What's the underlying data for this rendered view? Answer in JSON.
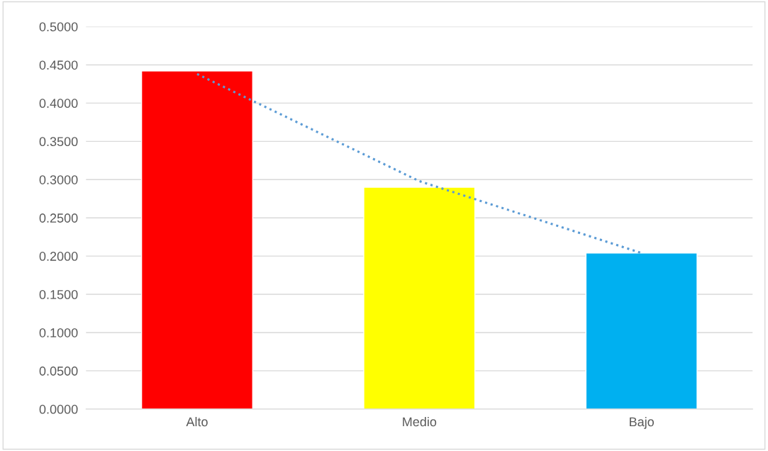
{
  "chart_data": {
    "type": "bar",
    "categories": [
      "Alto",
      "Medio",
      "Bajo"
    ],
    "series": [
      {
        "colors": [
          "#ff0000",
          "#ffff00",
          "#00b0f0"
        ],
        "values": [
          0.442,
          0.29,
          0.204
        ]
      },
      {
        "type": "line",
        "color": "#5b9bd5",
        "line_style": "dotted",
        "values": [
          0.438,
          0.298,
          0.204
        ]
      }
    ],
    "ylim": [
      0,
      0.5
    ],
    "yticks": [
      {
        "value": 0,
        "label": "0.0000"
      },
      {
        "value": 0.05,
        "label": "0.0500"
      },
      {
        "value": 0.1,
        "label": "0.1000"
      },
      {
        "value": 0.15,
        "label": "0.1500"
      },
      {
        "value": 0.2,
        "label": "0.2000"
      },
      {
        "value": 0.25,
        "label": "0.2500"
      },
      {
        "value": 0.3,
        "label": "0.3000"
      },
      {
        "value": 0.35,
        "label": "0.3500"
      },
      {
        "value": 0.4,
        "label": "0.4000"
      },
      {
        "value": 0.45,
        "label": "0.4500"
      },
      {
        "value": 0.5,
        "label": "0.5000"
      }
    ],
    "grid": "y"
  }
}
